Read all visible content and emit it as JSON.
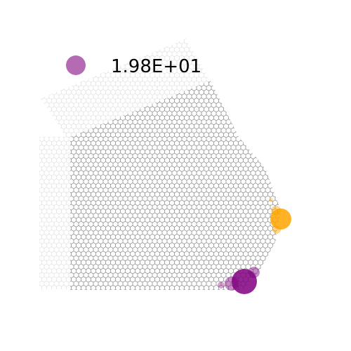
{
  "chart_data": {
    "type": "scatter",
    "description_note": "",
    "legend": {
      "placement": "top-left",
      "entries": [
        {
          "label": "1.98E+01",
          "color": "#b46bb4"
        }
      ]
    },
    "colors": {
      "lattice_light": "#d9d9d9",
      "lattice_dark": "#6e6e6e",
      "highlight_orange": "#ffa500",
      "highlight_purple": "#800080"
    },
    "grid": false,
    "axes_visible": false
  }
}
